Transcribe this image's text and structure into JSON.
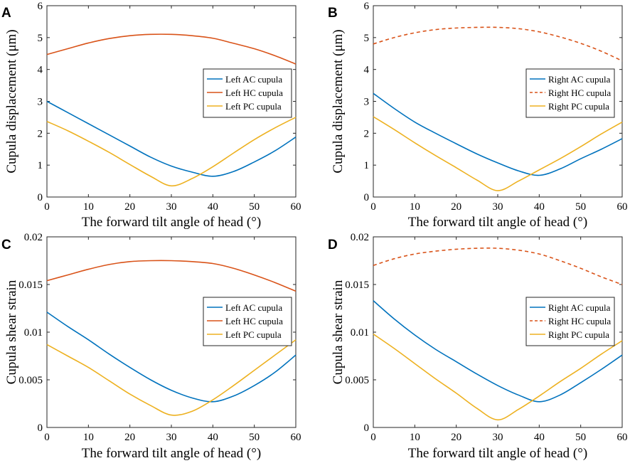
{
  "colors": {
    "ac": "#0072BD",
    "hc": "#D95319",
    "pc": "#EDB120",
    "axis": "#262626"
  },
  "chart_data": [
    {
      "type": "line",
      "panel": "A",
      "title": "",
      "xlabel": "The forward tilt angle of head (°)",
      "ylabel": "Cupula displacement (μm)",
      "xlim": [
        0,
        60
      ],
      "ylim": [
        0,
        6
      ],
      "xticks": [
        "0",
        "10",
        "20",
        "30",
        "40",
        "50",
        "60"
      ],
      "yticks": [
        "0",
        "1",
        "2",
        "3",
        "4",
        "5",
        "6"
      ],
      "legend_position": "right-middle",
      "x": [
        0,
        5,
        10,
        15,
        20,
        25,
        30,
        35,
        40,
        45,
        50,
        55,
        60
      ],
      "series": [
        {
          "name": "Left AC cupula",
          "color": "ac",
          "dash": false,
          "values": [
            3.0,
            2.65,
            2.3,
            1.95,
            1.6,
            1.25,
            0.97,
            0.78,
            0.65,
            0.8,
            1.1,
            1.45,
            1.88
          ]
        },
        {
          "name": "Left HC cupula",
          "color": "hc",
          "dash": false,
          "values": [
            4.47,
            4.65,
            4.83,
            4.97,
            5.06,
            5.1,
            5.1,
            5.06,
            4.98,
            4.82,
            4.65,
            4.43,
            4.17
          ]
        },
        {
          "name": "Left PC cupula",
          "color": "pc",
          "dash": false,
          "values": [
            2.37,
            2.08,
            1.75,
            1.4,
            1.02,
            0.65,
            0.35,
            0.58,
            0.95,
            1.38,
            1.8,
            2.17,
            2.5
          ]
        }
      ]
    },
    {
      "type": "line",
      "panel": "B",
      "title": "",
      "xlabel": "The forward tilt angle of head (°)",
      "ylabel": "Cupula displacement (μm)",
      "xlim": [
        0,
        60
      ],
      "ylim": [
        0,
        6
      ],
      "xticks": [
        "0",
        "10",
        "20",
        "30",
        "40",
        "50",
        "60"
      ],
      "yticks": [
        "0",
        "1",
        "2",
        "3",
        "4",
        "5",
        "6"
      ],
      "legend_position": "right-middle",
      "x": [
        0,
        5,
        10,
        15,
        20,
        25,
        30,
        35,
        40,
        45,
        50,
        55,
        60
      ],
      "series": [
        {
          "name": "Right AC cupula",
          "color": "ac",
          "dash": false,
          "values": [
            3.25,
            2.78,
            2.35,
            2.0,
            1.67,
            1.35,
            1.07,
            0.82,
            0.68,
            0.88,
            1.2,
            1.5,
            1.83
          ]
        },
        {
          "name": "Right HC cupula",
          "color": "hc",
          "dash": true,
          "values": [
            4.8,
            5.0,
            5.15,
            5.25,
            5.3,
            5.32,
            5.32,
            5.28,
            5.18,
            5.02,
            4.82,
            4.57,
            4.27
          ]
        },
        {
          "name": "Right PC cupula",
          "color": "pc",
          "dash": false,
          "values": [
            2.52,
            2.12,
            1.7,
            1.3,
            0.92,
            0.53,
            0.2,
            0.5,
            0.85,
            1.2,
            1.58,
            1.98,
            2.35
          ]
        }
      ]
    },
    {
      "type": "line",
      "panel": "C",
      "title": "",
      "xlabel": "The forward tilt angle of head (°)",
      "ylabel": "Cupula shear strain",
      "xlim": [
        0,
        60
      ],
      "ylim": [
        0,
        0.02
      ],
      "xticks": [
        "0",
        "10",
        "20",
        "30",
        "40",
        "50",
        "60"
      ],
      "yticks": [
        "0",
        "0.005",
        "0.01",
        "0.015",
        "0.02"
      ],
      "legend_position": "right-middle",
      "x": [
        0,
        5,
        10,
        15,
        20,
        25,
        30,
        35,
        40,
        45,
        50,
        55,
        60
      ],
      "series": [
        {
          "name": "Left AC cupula",
          "color": "ac",
          "dash": false,
          "values": [
            0.0121,
            0.0106,
            0.0092,
            0.0077,
            0.0063,
            0.005,
            0.0039,
            0.0031,
            0.0027,
            0.0033,
            0.0044,
            0.0058,
            0.0076
          ]
        },
        {
          "name": "Left HC cupula",
          "color": "hc",
          "dash": false,
          "values": [
            0.0154,
            0.016,
            0.0166,
            0.0171,
            0.0174,
            0.0175,
            0.0175,
            0.0174,
            0.0172,
            0.0167,
            0.016,
            0.0152,
            0.0143
          ]
        },
        {
          "name": "Left PC cupula",
          "color": "pc",
          "dash": false,
          "values": [
            0.0087,
            0.0075,
            0.0063,
            0.0049,
            0.0035,
            0.0023,
            0.0013,
            0.0017,
            0.0029,
            0.0044,
            0.006,
            0.0076,
            0.0092
          ]
        }
      ]
    },
    {
      "type": "line",
      "panel": "D",
      "title": "",
      "xlabel": "The forward tilt angle of head (°)",
      "ylabel": "Cupula shear strain",
      "xlim": [
        0,
        60
      ],
      "ylim": [
        0,
        0.02
      ],
      "xticks": [
        "0",
        "10",
        "20",
        "30",
        "40",
        "50",
        "60"
      ],
      "yticks": [
        "0",
        "0.005",
        "0.01",
        "0.015",
        "0.02"
      ],
      "legend_position": "right-middle",
      "x": [
        0,
        5,
        10,
        15,
        20,
        25,
        30,
        35,
        40,
        45,
        50,
        55,
        60
      ],
      "series": [
        {
          "name": "Right AC cupula",
          "color": "ac",
          "dash": false,
          "values": [
            0.0133,
            0.0114,
            0.0097,
            0.0082,
            0.0069,
            0.0056,
            0.0044,
            0.0034,
            0.0027,
            0.0034,
            0.0047,
            0.0061,
            0.0076
          ]
        },
        {
          "name": "Right HC cupula",
          "color": "hc",
          "dash": true,
          "values": [
            0.017,
            0.0177,
            0.0182,
            0.0185,
            0.0187,
            0.0188,
            0.0188,
            0.0186,
            0.0182,
            0.0175,
            0.0167,
            0.0158,
            0.015
          ]
        },
        {
          "name": "Right PC cupula",
          "color": "pc",
          "dash": false,
          "values": [
            0.0098,
            0.0083,
            0.0067,
            0.0051,
            0.0036,
            0.002,
            0.0008,
            0.0019,
            0.0033,
            0.0048,
            0.0062,
            0.0077,
            0.0091
          ]
        }
      ]
    }
  ]
}
